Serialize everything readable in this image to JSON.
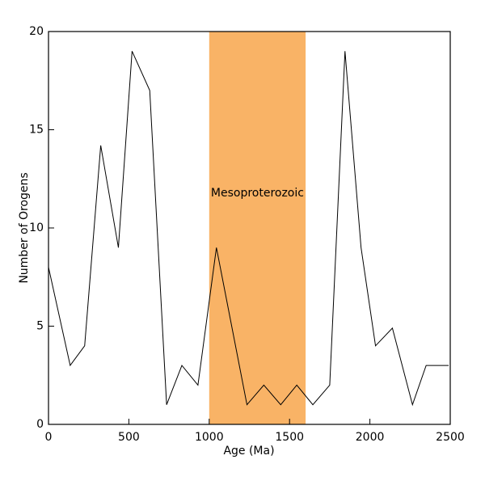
{
  "chart_data": {
    "type": "line",
    "x_label": "Age (Ma)",
    "y_label": "Number of Orogens",
    "x": [
      0,
      135,
      225,
      325,
      435,
      520,
      630,
      735,
      830,
      930,
      1045,
      1235,
      1340,
      1445,
      1545,
      1645,
      1750,
      1845,
      1945,
      2035,
      2140,
      2265,
      2350,
      2490
    ],
    "series": [
      {
        "name": "Orogens",
        "color": "#000000",
        "values": [
          8,
          3,
          4,
          14.2,
          9,
          19,
          17,
          1,
          3,
          2,
          9,
          1,
          2,
          1,
          2,
          1,
          2,
          19,
          9,
          4,
          4.9,
          1,
          3,
          3
        ]
      }
    ],
    "shade": {
      "xmin": 1000,
      "xmax": 1600,
      "color": "#f9b366",
      "label": "Mesoproterozoic"
    },
    "xlim": [
      0,
      2500
    ],
    "xticks": [
      0,
      500,
      1000,
      1500,
      2000,
      2500
    ],
    "ylim": [
      0,
      20
    ],
    "yticks": [
      0,
      5,
      10,
      15,
      20
    ]
  }
}
